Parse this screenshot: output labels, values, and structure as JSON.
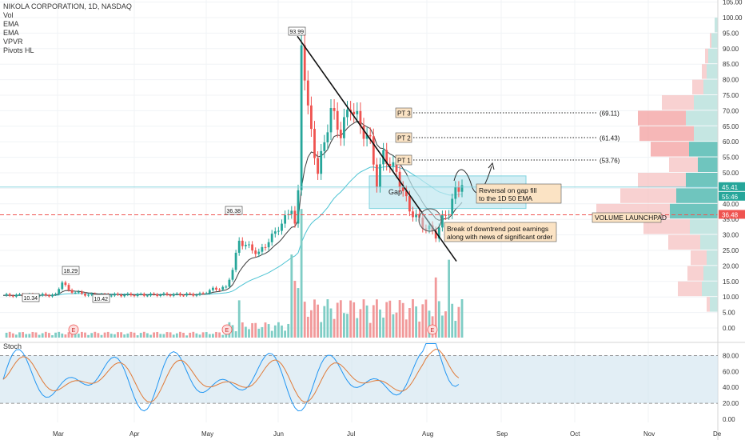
{
  "header": {
    "symbol_line": "NIKOLA CORPORATION, 1D, NASDAQ",
    "indicators": [
      "Vol",
      "EMA",
      "EMA",
      "VPVR",
      "Pivots HL"
    ]
  },
  "stoch": {
    "label": "Stoch",
    "ticks": [
      "80.00",
      "60.00",
      "40.00",
      "20.00",
      "0.00"
    ]
  },
  "colors": {
    "up": "#26a69a",
    "down": "#ef5350",
    "ema_fast": "#3b3b3b",
    "ema_slow": "#4cc3d3",
    "stoch_k": "#2196f3",
    "stoch_d": "#e07b39",
    "gap_box": "#bfe8f0"
  },
  "chart_data": {
    "type": "candlestick",
    "price_axis": [
      "105.00",
      "100.00",
      "95.00",
      "90.00",
      "85.00",
      "80.00",
      "75.00",
      "70.00",
      "65.00",
      "60.00",
      "55.00",
      "50.00",
      "45.00",
      "40.00",
      "35.00",
      "30.00",
      "25.00",
      "20.00",
      "15.00",
      "10.00",
      "5.00",
      "0.00"
    ],
    "ylim": [
      -2,
      106
    ],
    "months": [
      "Mar",
      "Apr",
      "May",
      "Jun",
      "Jul",
      "Aug",
      "Sep",
      "Oct",
      "Nov",
      "De"
    ],
    "pivot_labels": [
      "10.34",
      "18.29",
      "10.42",
      "36.38",
      "93.99"
    ],
    "last_price": "45.41",
    "countdown": "55:46",
    "level_price": "36.48",
    "price_targets": [
      {
        "label": "PT 3",
        "value": "(69.11)"
      },
      {
        "label": "PT 2",
        "value": "(61.43)"
      },
      {
        "label": "PT 1",
        "value": "(53.76)"
      }
    ],
    "annotations": {
      "gap": "Gap",
      "reversal": [
        "Reversal on gap fill",
        "to the 1D 50 EMA"
      ],
      "breakout": [
        "Break of downtrend post earnings",
        "along with news of significant order"
      ],
      "volume": "VOLUME LAUNCHPAD",
      "earnings": "E"
    }
  }
}
